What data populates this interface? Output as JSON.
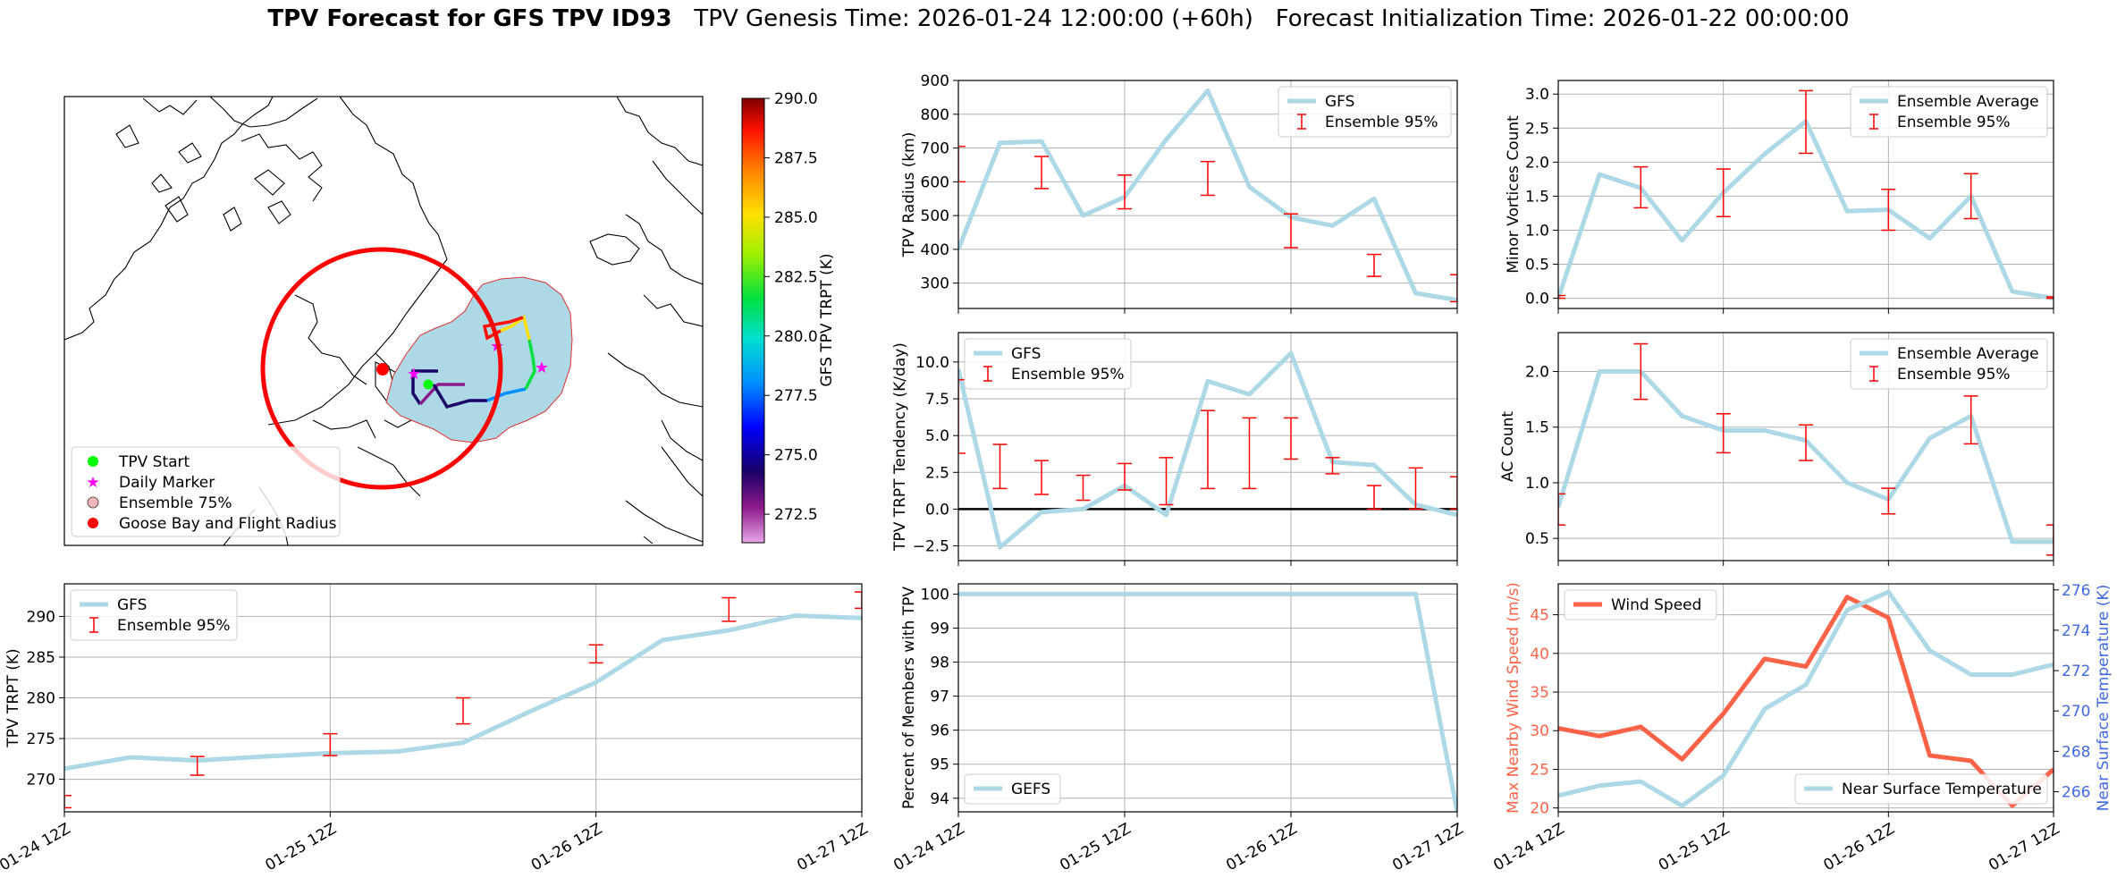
{
  "header": {
    "title_bold": "TPV Forecast for GFS TPV ID93",
    "title_rest": "TPV Genesis Time: 2026-01-24 12:00:00 (+60h)   Forecast Initialization Time: 2026-01-22 00:00:00"
  },
  "colors": {
    "gfs_line": "#add8e6",
    "ensemble_err": "#ff0000",
    "wind": "#ff6347",
    "temp_axis": "#4169e1",
    "goose_circle": "#ff0000"
  },
  "map": {
    "legend": [
      "TPV Start",
      "Daily Marker",
      "Ensemble 75%",
      "Goose Bay and Flight Radius"
    ],
    "legend_marker_colors": [
      "#00ff00",
      "#ff00ff",
      "#f4b6b6",
      "#ff0000"
    ],
    "colorbar": {
      "label": "GFS TPV TRPT (K)",
      "ticks": [
        "290.0",
        "287.5",
        "285.0",
        "282.5",
        "280.0",
        "277.5",
        "275.0",
        "272.5"
      ],
      "range": [
        271.3,
        290.0
      ]
    }
  },
  "chart_data": [
    {
      "id": "radius",
      "type": "line",
      "ylabel": "TPV Radius (km)",
      "ylim": [
        225,
        900
      ],
      "yticks": [
        300,
        400,
        500,
        600,
        700,
        800,
        900
      ],
      "ytick_labels": [
        "300",
        "400",
        "500",
        "600",
        "700",
        "800",
        "900"
      ],
      "legend": [
        "GFS",
        "Ensemble 95%"
      ],
      "legend_loc": "upper right",
      "x": [
        0,
        1,
        2,
        3,
        4,
        5,
        6,
        7,
        8,
        9,
        10,
        11,
        12
      ],
      "series": [
        {
          "name": "GFS",
          "values": [
            400,
            715,
            720,
            500,
            555,
            725,
            870,
            585,
            495,
            470,
            550,
            270,
            250
          ]
        }
      ],
      "errorbars": [
        {
          "x": 0,
          "low": 600,
          "high": 705
        },
        {
          "x": 2,
          "low": 580,
          "high": 675
        },
        {
          "x": 4,
          "low": 520,
          "high": 620
        },
        {
          "x": 6,
          "low": 560,
          "high": 660
        },
        {
          "x": 8,
          "low": 405,
          "high": 505
        },
        {
          "x": 10,
          "low": 320,
          "high": 385
        },
        {
          "x": 12,
          "low": 245,
          "high": 325
        }
      ]
    },
    {
      "id": "minor",
      "type": "line",
      "ylabel": "Minor Vortices Count",
      "ylim": [
        -0.15,
        3.2
      ],
      "yticks": [
        0,
        0.5,
        1,
        1.5,
        2,
        2.5,
        3
      ],
      "ytick_labels": [
        "0.0",
        "0.5",
        "1.0",
        "1.5",
        "2.0",
        "2.5",
        "3.0"
      ],
      "legend": [
        "Ensemble Average",
        "Ensemble 95%"
      ],
      "legend_loc": "upper right",
      "x": [
        0,
        1,
        2,
        3,
        4,
        5,
        6,
        7,
        8,
        9,
        10,
        11,
        12
      ],
      "series": [
        {
          "name": "Ensemble Average",
          "values": [
            0,
            1.82,
            1.62,
            0.85,
            1.55,
            2.12,
            2.6,
            1.28,
            1.3,
            0.88,
            1.5,
            0.1,
            0
          ]
        }
      ],
      "errorbars": [
        {
          "x": 0,
          "low": 0,
          "high": 0.04
        },
        {
          "x": 2,
          "low": 1.33,
          "high": 1.93
        },
        {
          "x": 4,
          "low": 1.2,
          "high": 1.9
        },
        {
          "x": 6,
          "low": 2.13,
          "high": 3.05
        },
        {
          "x": 8,
          "low": 1.0,
          "high": 1.6
        },
        {
          "x": 10,
          "low": 1.17,
          "high": 1.83
        },
        {
          "x": 12,
          "low": 0,
          "high": 0.02
        }
      ]
    },
    {
      "id": "tendency",
      "type": "line",
      "ylabel": "TPV TRPT Tendency (K/day)",
      "ylim": [
        -3.5,
        12
      ],
      "yticks": [
        -2.5,
        0,
        2.5,
        5,
        7.5,
        10
      ],
      "ytick_labels": [
        "−2.5",
        "0.0",
        "2.5",
        "5.0",
        "7.5",
        "10.0"
      ],
      "legend": [
        "GFS",
        "Ensemble 95%"
      ],
      "legend_loc": "upper left",
      "zero_line": 0,
      "x": [
        0,
        1,
        2,
        3,
        4,
        5,
        6,
        7,
        8,
        9,
        10,
        11,
        12
      ],
      "series": [
        {
          "name": "GFS",
          "values": [
            9.5,
            -2.6,
            -0.2,
            0,
            1.6,
            -0.4,
            8.7,
            7.8,
            10.6,
            3.2,
            3.0,
            0.3,
            -0.4
          ]
        }
      ],
      "errorbars": [
        {
          "x": 0,
          "low": 3.8,
          "high": 8.8
        },
        {
          "x": 1,
          "low": 1.4,
          "high": 4.4
        },
        {
          "x": 2,
          "low": 1.0,
          "high": 3.3
        },
        {
          "x": 3,
          "low": 0.6,
          "high": 2.3
        },
        {
          "x": 4,
          "low": 1.3,
          "high": 3.1
        },
        {
          "x": 5,
          "low": 0.3,
          "high": 3.5
        },
        {
          "x": 6,
          "low": 1.4,
          "high": 6.7
        },
        {
          "x": 7,
          "low": 1.4,
          "high": 6.2
        },
        {
          "x": 8,
          "low": 3.4,
          "high": 6.2
        },
        {
          "x": 9,
          "low": 2.4,
          "high": 3.5
        },
        {
          "x": 10,
          "low": 0,
          "high": 1.6
        },
        {
          "x": 11,
          "low": 0,
          "high": 2.8
        },
        {
          "x": 12,
          "low": 0,
          "high": 2.2
        }
      ]
    },
    {
      "id": "ac",
      "type": "line",
      "ylabel": "AC Count",
      "ylim": [
        0.3,
        2.35
      ],
      "yticks": [
        0.5,
        1,
        1.5,
        2
      ],
      "ytick_labels": [
        "0.5",
        "1.0",
        "1.5",
        "2.0"
      ],
      "legend": [
        "Ensemble Average",
        "Ensemble 95%"
      ],
      "legend_loc": "upper right",
      "x": [
        0,
        1,
        2,
        3,
        4,
        5,
        6,
        7,
        8,
        9,
        10,
        11,
        12
      ],
      "series": [
        {
          "name": "Ensemble Average",
          "values": [
            0.78,
            2.0,
            2.0,
            1.6,
            1.47,
            1.47,
            1.38,
            1.0,
            0.85,
            1.4,
            1.6,
            0.47,
            0.47
          ]
        }
      ],
      "errorbars": [
        {
          "x": 0,
          "low": 0.62,
          "high": 0.9
        },
        {
          "x": 2,
          "low": 1.75,
          "high": 2.25
        },
        {
          "x": 4,
          "low": 1.27,
          "high": 1.62
        },
        {
          "x": 6,
          "low": 1.2,
          "high": 1.52
        },
        {
          "x": 8,
          "low": 0.72,
          "high": 0.95
        },
        {
          "x": 10,
          "low": 1.35,
          "high": 1.78
        },
        {
          "x": 12,
          "low": 0.35,
          "high": 0.62
        }
      ]
    },
    {
      "id": "trpt",
      "type": "line",
      "ylabel": "TPV TRPT (K)",
      "ylim": [
        266,
        294
      ],
      "yticks": [
        270,
        275,
        280,
        285,
        290
      ],
      "ytick_labels": [
        "270",
        "275",
        "280",
        "285",
        "290"
      ],
      "legend": [
        "GFS",
        "Ensemble 95%"
      ],
      "legend_loc": "upper left",
      "xticks": [
        "01-24 12Z",
        "01-25 12Z",
        "01-26 12Z",
        "01-27 12Z"
      ],
      "x": [
        0,
        1,
        2,
        3,
        4,
        5,
        6,
        7,
        8,
        9,
        10,
        11,
        12
      ],
      "series": [
        {
          "name": "GFS",
          "values": [
            271.3,
            272.7,
            272.3,
            272.8,
            273.2,
            273.4,
            274.5,
            278.3,
            281.9,
            287.1,
            288.3,
            290.1,
            289.8
          ]
        }
      ],
      "errorbars": [
        {
          "x": 0,
          "low": 266.5,
          "high": 268.0
        },
        {
          "x": 2,
          "low": 270.5,
          "high": 272.8
        },
        {
          "x": 4,
          "low": 272.9,
          "high": 275.6
        },
        {
          "x": 6,
          "low": 276.8,
          "high": 280.0
        },
        {
          "x": 8,
          "low": 284.3,
          "high": 286.5
        },
        {
          "x": 10,
          "low": 289.4,
          "high": 292.3
        },
        {
          "x": 12,
          "low": 291.0,
          "high": 293.0
        }
      ]
    },
    {
      "id": "percent",
      "type": "line",
      "ylabel": "Percent of Members with TPV",
      "ylim": [
        93.6,
        100.3
      ],
      "yticks": [
        94,
        95,
        96,
        97,
        98,
        99,
        100
      ],
      "ytick_labels": [
        "94",
        "95",
        "96",
        "97",
        "98",
        "99",
        "100"
      ],
      "legend": [
        "GEFS"
      ],
      "legend_loc": "lower left",
      "xticks": [
        "01-24 12Z",
        "01-25 12Z",
        "01-26 12Z",
        "01-27 12Z"
      ],
      "x": [
        0,
        1,
        2,
        3,
        4,
        5,
        6,
        7,
        8,
        9,
        10,
        11,
        12
      ],
      "series": [
        {
          "name": "GEFS",
          "values": [
            100,
            100,
            100,
            100,
            100,
            100,
            100,
            100,
            100,
            100,
            100,
            100,
            93.6
          ]
        }
      ]
    },
    {
      "id": "wind",
      "type": "line",
      "ylabel": "Max Nearby Wind Speed (m/s)",
      "ylim": [
        19.5,
        49
      ],
      "yticks": [
        20,
        25,
        30,
        35,
        40,
        45
      ],
      "ytick_labels": [
        "20",
        "25",
        "30",
        "35",
        "40",
        "45"
      ],
      "y2label": "Near Surface Temperature (K)",
      "y2lim": [
        265,
        276.3
      ],
      "y2ticks": [
        266,
        268,
        270,
        272,
        274,
        276
      ],
      "y2tick_labels": [
        "266",
        "268",
        "270",
        "272",
        "274",
        "276"
      ],
      "legend": [
        "Wind Speed",
        "Near Surface Temperature"
      ],
      "legend_loc": "upper left / lower right",
      "xticks": [
        "01-24 12Z",
        "01-25 12Z",
        "01-26 12Z",
        "01-27 12Z"
      ],
      "x": [
        0,
        1,
        2,
        3,
        4,
        5,
        6,
        7,
        8,
        9,
        10,
        11,
        12
      ],
      "series": [
        {
          "name": "Wind Speed",
          "axis": "left",
          "values": [
            30.3,
            29.3,
            30.5,
            26.3,
            32.2,
            39.3,
            38.3,
            47.3,
            44.6,
            26.8,
            26.1,
            20.3,
            25.0
          ]
        },
        {
          "name": "Near Surface Temperature",
          "axis": "right",
          "values": [
            265.8,
            266.3,
            266.5,
            265.3,
            266.8,
            270.1,
            271.3,
            275.0,
            275.9,
            273.0,
            271.8,
            271.8,
            272.3
          ]
        }
      ]
    }
  ]
}
